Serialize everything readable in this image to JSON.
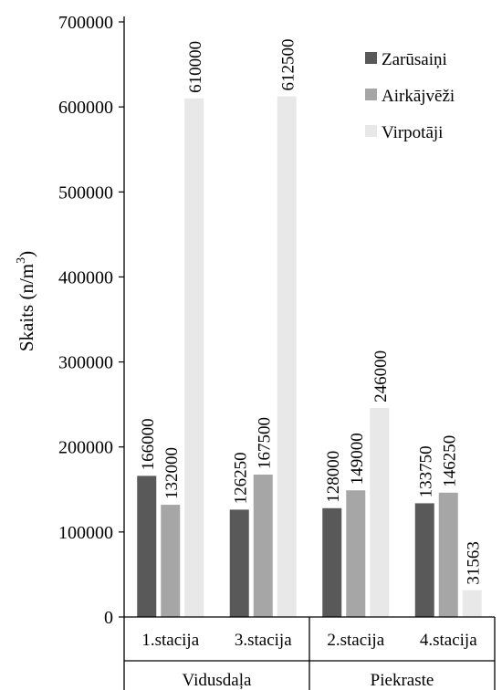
{
  "chart_data": {
    "type": "bar",
    "title": "",
    "xlabel": "",
    "ylabel": "Skaits (n/m",
    "ylabel_superscript": "3",
    "ylabel_suffix": ")",
    "ylim": [
      0,
      700000
    ],
    "yticks": [
      0,
      100000,
      200000,
      300000,
      400000,
      500000,
      600000,
      700000
    ],
    "grid": false,
    "legend_position": "top-right",
    "categories": [
      "1.stacija",
      "3.stacija",
      "2.stacija",
      "4.stacija"
    ],
    "groups": [
      {
        "label": "Vidusdaļa",
        "categories": [
          "1.stacija",
          "3.stacija"
        ]
      },
      {
        "label": "Piekraste",
        "categories": [
          "2.stacija",
          "4.stacija"
        ]
      }
    ],
    "series": [
      {
        "name": "Zarūsaiņi",
        "color": "#595959",
        "values": [
          166000,
          126250,
          128000,
          133750
        ]
      },
      {
        "name": "Airkājvēži",
        "color": "#a6a6a6",
        "values": [
          132000,
          167500,
          149000,
          146250
        ]
      },
      {
        "name": "Virpotāji",
        "color": "#e8e8e8",
        "values": [
          610000,
          612500,
          246000,
          31563
        ]
      }
    ]
  }
}
